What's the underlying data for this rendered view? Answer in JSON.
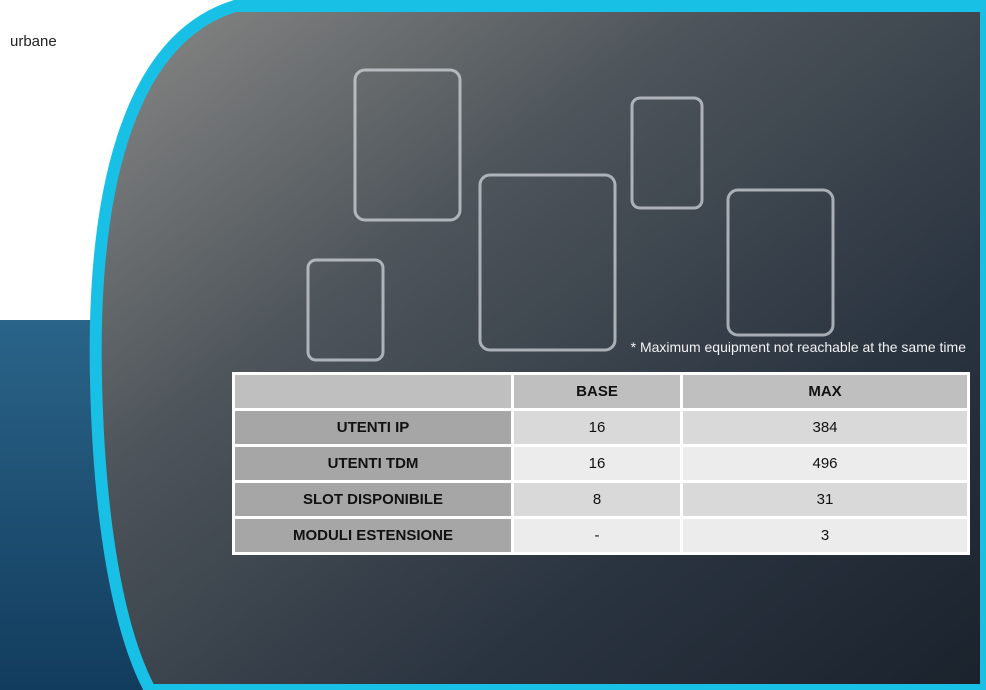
{
  "caption": "urbane",
  "note": "* Maximum equipment not reachable at the same time",
  "table": {
    "columns": [
      "BASE",
      "MAX"
    ],
    "rows": [
      {
        "label": "UTENTI IP",
        "cells": [
          "16",
          "384"
        ]
      },
      {
        "label": "UTENTI TDM",
        "cells": [
          "16",
          "496"
        ]
      },
      {
        "label": "SLOT DISPONIBILE",
        "cells": [
          "8",
          "31"
        ]
      },
      {
        "label": "MODULI ESTENSIONE",
        "cells": [
          "-",
          "3"
        ]
      }
    ]
  }
}
